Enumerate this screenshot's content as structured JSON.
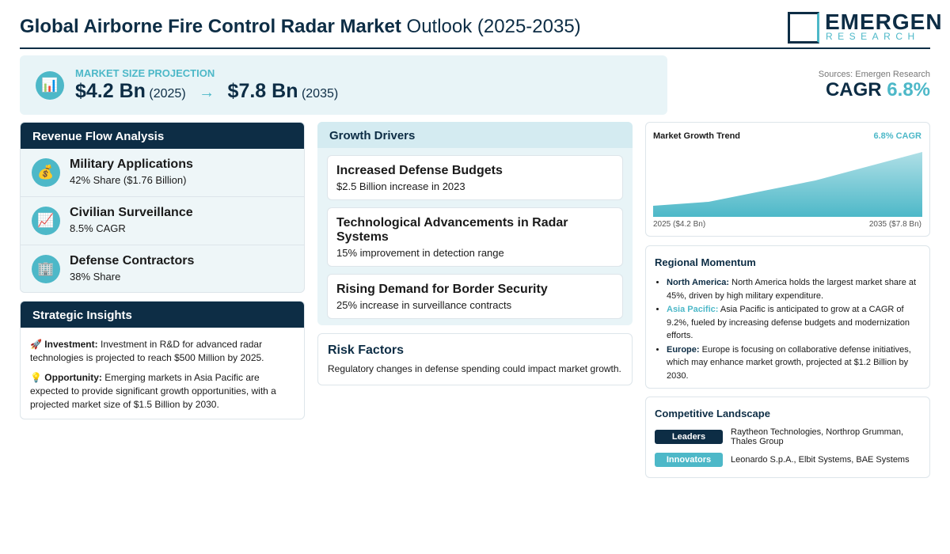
{
  "header": {
    "title_bold": "Global Airborne Fire Control Radar Market",
    "title_rest": "Outlook (2025-2035)",
    "logo_main": "EMERGEN",
    "logo_sub": "RESEARCH"
  },
  "projection": {
    "label": "MARKET SIZE PROJECTION",
    "start_value": "$4.2 Bn",
    "start_year": "(2025)",
    "end_value": "$7.8 Bn",
    "end_year": "(2035)"
  },
  "source": "Sources: Emergen Research",
  "cagr": {
    "label": "CAGR",
    "value": "6.8%"
  },
  "revenue_flow": {
    "title": "Revenue Flow Analysis",
    "items": [
      {
        "name": "Military Applications",
        "detail": "42% Share ($1.76 Billion)"
      },
      {
        "name": "Civilian Surveillance",
        "detail": "8.5% CAGR"
      },
      {
        "name": "Defense Contractors",
        "detail": "38% Share"
      }
    ]
  },
  "strategic_insights": {
    "title": "Strategic Insights",
    "items": [
      {
        "label": "Investment:",
        "text": "Investment in R&D for advanced radar technologies is projected to reach $500 Million by 2025."
      },
      {
        "label": "Opportunity:",
        "text": "Emerging markets in Asia Pacific are expected to provide significant growth opportunities, with a projected market size of $1.5 Billion by 2030."
      }
    ]
  },
  "growth_drivers": {
    "title": "Growth Drivers",
    "items": [
      {
        "name": "Increased Defense Budgets",
        "detail": "$2.5 Billion increase in 2023"
      },
      {
        "name": "Technological Advancements in Radar Systems",
        "detail": "15% improvement in detection range"
      },
      {
        "name": "Rising Demand for Border Security",
        "detail": "25% increase in surveillance contracts"
      }
    ]
  },
  "risk_factors": {
    "title": "Risk Factors",
    "text": "Regulatory changes in defense spending could impact market growth."
  },
  "growth_trend": {
    "title": "Market Growth Trend",
    "badge": "6.8% CAGR",
    "start_label": "2025 ($4.2 Bn)",
    "end_label": "2035 ($7.8 Bn)"
  },
  "regional_momentum": {
    "title": "Regional Momentum",
    "items": [
      {
        "region": "North America:",
        "text": "North America holds the largest market share at 45%, driven by high military expenditure."
      },
      {
        "region": "Asia Pacific:",
        "text": "Asia Pacific is anticipated to grow at a CAGR of 9.2%, fueled by increasing defense budgets and modernization efforts."
      },
      {
        "region": "Europe:",
        "text": "Europe is focusing on collaborative defense initiatives, which may enhance market growth, projected at $1.2 Billion by 2030."
      }
    ]
  },
  "competitive_landscape": {
    "title": "Competitive Landscape",
    "rows": [
      {
        "badge": "Leaders",
        "companies": "Raytheon Technologies, Northrop Grumman, Thales Group"
      },
      {
        "badge": "Innovators",
        "companies": "Leonardo S.p.A., Elbit Systems, BAE Systems"
      }
    ]
  }
}
